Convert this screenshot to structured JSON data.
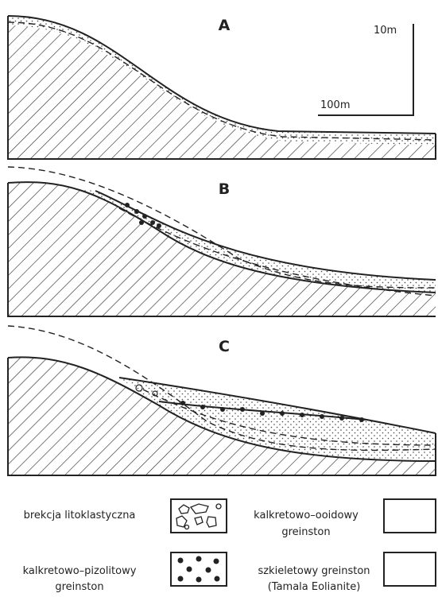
{
  "panels": [
    {
      "label": "A"
    },
    {
      "label": "B"
    },
    {
      "label": "C"
    }
  ],
  "scale": {
    "vertical": "10m",
    "horizontal": "100m"
  },
  "legend": [
    {
      "lines": [
        "brekcja litoklastyczna"
      ]
    },
    {
      "lines": [
        "kalkretowo–ooidowy",
        "greinston"
      ]
    },
    {
      "lines": [
        "kalkretowo–pizolitowy",
        "greinston"
      ]
    },
    {
      "lines": [
        "szkieletowy greinston",
        "(Tamala Eolianite)"
      ]
    }
  ]
}
